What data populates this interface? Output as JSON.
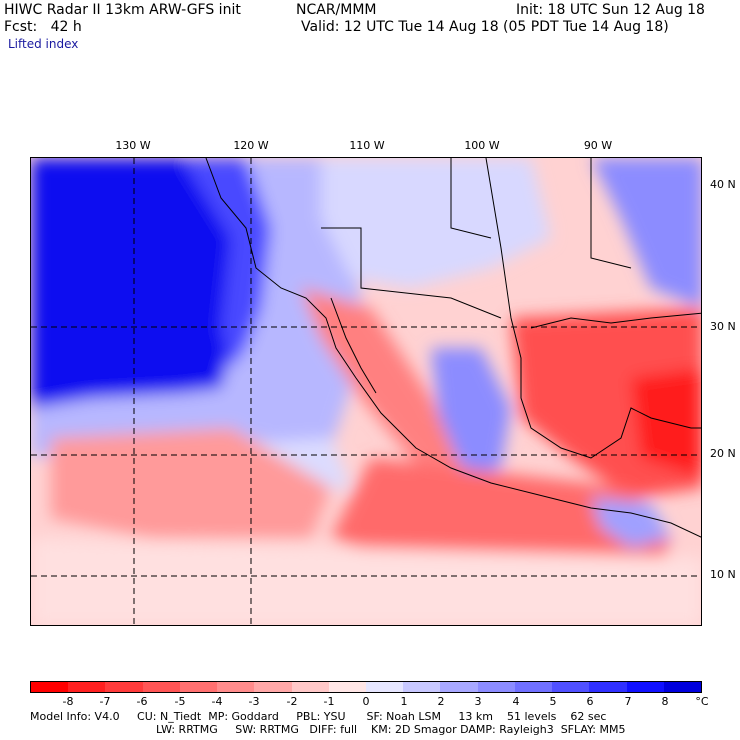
{
  "header": {
    "line1_left": "HIWC Radar II 13km ARW-GFS init",
    "line1_mid": "NCAR/MMM",
    "line1_right": "Init: 18 UTC Sun 12 Aug 18",
    "line2_left": "Fcst:   42 h",
    "line2_right": "Valid: 12 UTC Tue 14 Aug 18 (05 PDT Tue 14 Aug 18)",
    "field_name": "Lifted index"
  },
  "map": {
    "lon_labels": [
      "130 W",
      "120 W",
      "110 W",
      "100 W",
      "90 W"
    ],
    "lat_labels": [
      "40 N",
      "30 N",
      "20 N",
      "10 N"
    ]
  },
  "colorbar": {
    "values": [
      "-8",
      "-7",
      "-6",
      "-5",
      "-4",
      "-3",
      "-2",
      "-1",
      "0",
      "1",
      "2",
      "3",
      "4",
      "5",
      "6",
      "7",
      "8"
    ],
    "unit": "°C",
    "colors": [
      "#ff0000",
      "#ff2020",
      "#ff3b3b",
      "#ff5555",
      "#ff7070",
      "#ff8c8c",
      "#ffa8a8",
      "#ffc8c8",
      "#ffe6e6",
      "#e6e6ff",
      "#c8c8ff",
      "#a8a8ff",
      "#8c8cff",
      "#7070ff",
      "#5050ff",
      "#3030ff",
      "#1010ff",
      "#0000dd"
    ]
  },
  "footer": {
    "line1": "Model Info: V4.0     CU: N_Tiedt  MP: Goddard     PBL: YSU      SF: Noah LSM     13 km    51 levels    62 sec",
    "line2": "LW: RRTMG     SW: RRTMG   DIFF: full    KM: 2D Smagor DAMP: Rayleigh3  SFLAY: MM5"
  }
}
